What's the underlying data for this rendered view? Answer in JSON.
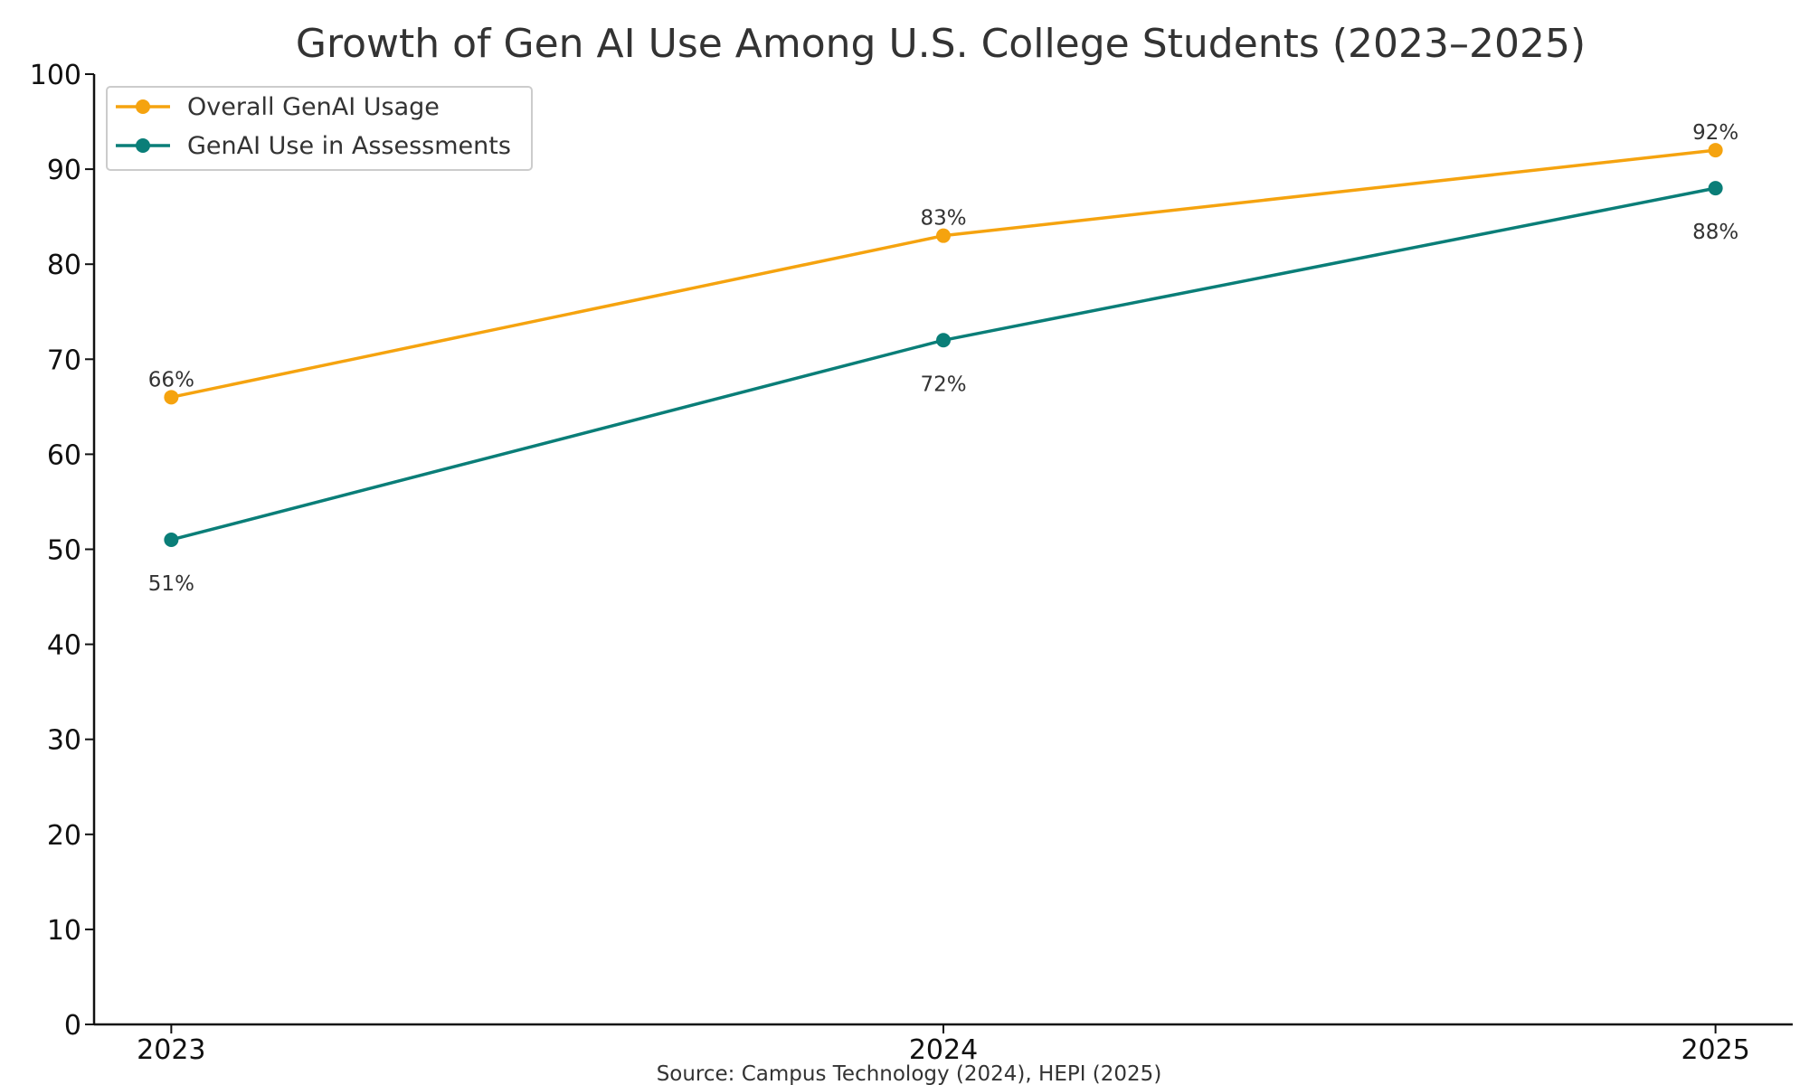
{
  "chart_data": {
    "type": "line",
    "title": "Growth of Gen AI Use Among U.S. College Students (2023–2025)",
    "categories": [
      "2023",
      "2024",
      "2025"
    ],
    "x": [
      2023,
      2024,
      2025
    ],
    "ylim": [
      0,
      100
    ],
    "yticks": [
      "0",
      "10",
      "20",
      "30",
      "40",
      "50",
      "60",
      "70",
      "80",
      "90",
      "100"
    ],
    "xlabel": "",
    "ylabel": "",
    "grid": false,
    "legend_position": "top-left",
    "series": [
      {
        "name": "Overall GenAI Usage",
        "color": "#f5a30f",
        "values": [
          66,
          83,
          92
        ],
        "labels": [
          "66%",
          "83%",
          "92%"
        ],
        "label_position": "above"
      },
      {
        "name": "GenAI Use in Assessments",
        "color": "#0a7e78",
        "values": [
          51,
          72,
          88
        ],
        "labels": [
          "51%",
          "72%",
          "88%"
        ],
        "label_position": "below"
      }
    ],
    "source": "Source: Campus Technology (2024), HEPI (2025)"
  }
}
